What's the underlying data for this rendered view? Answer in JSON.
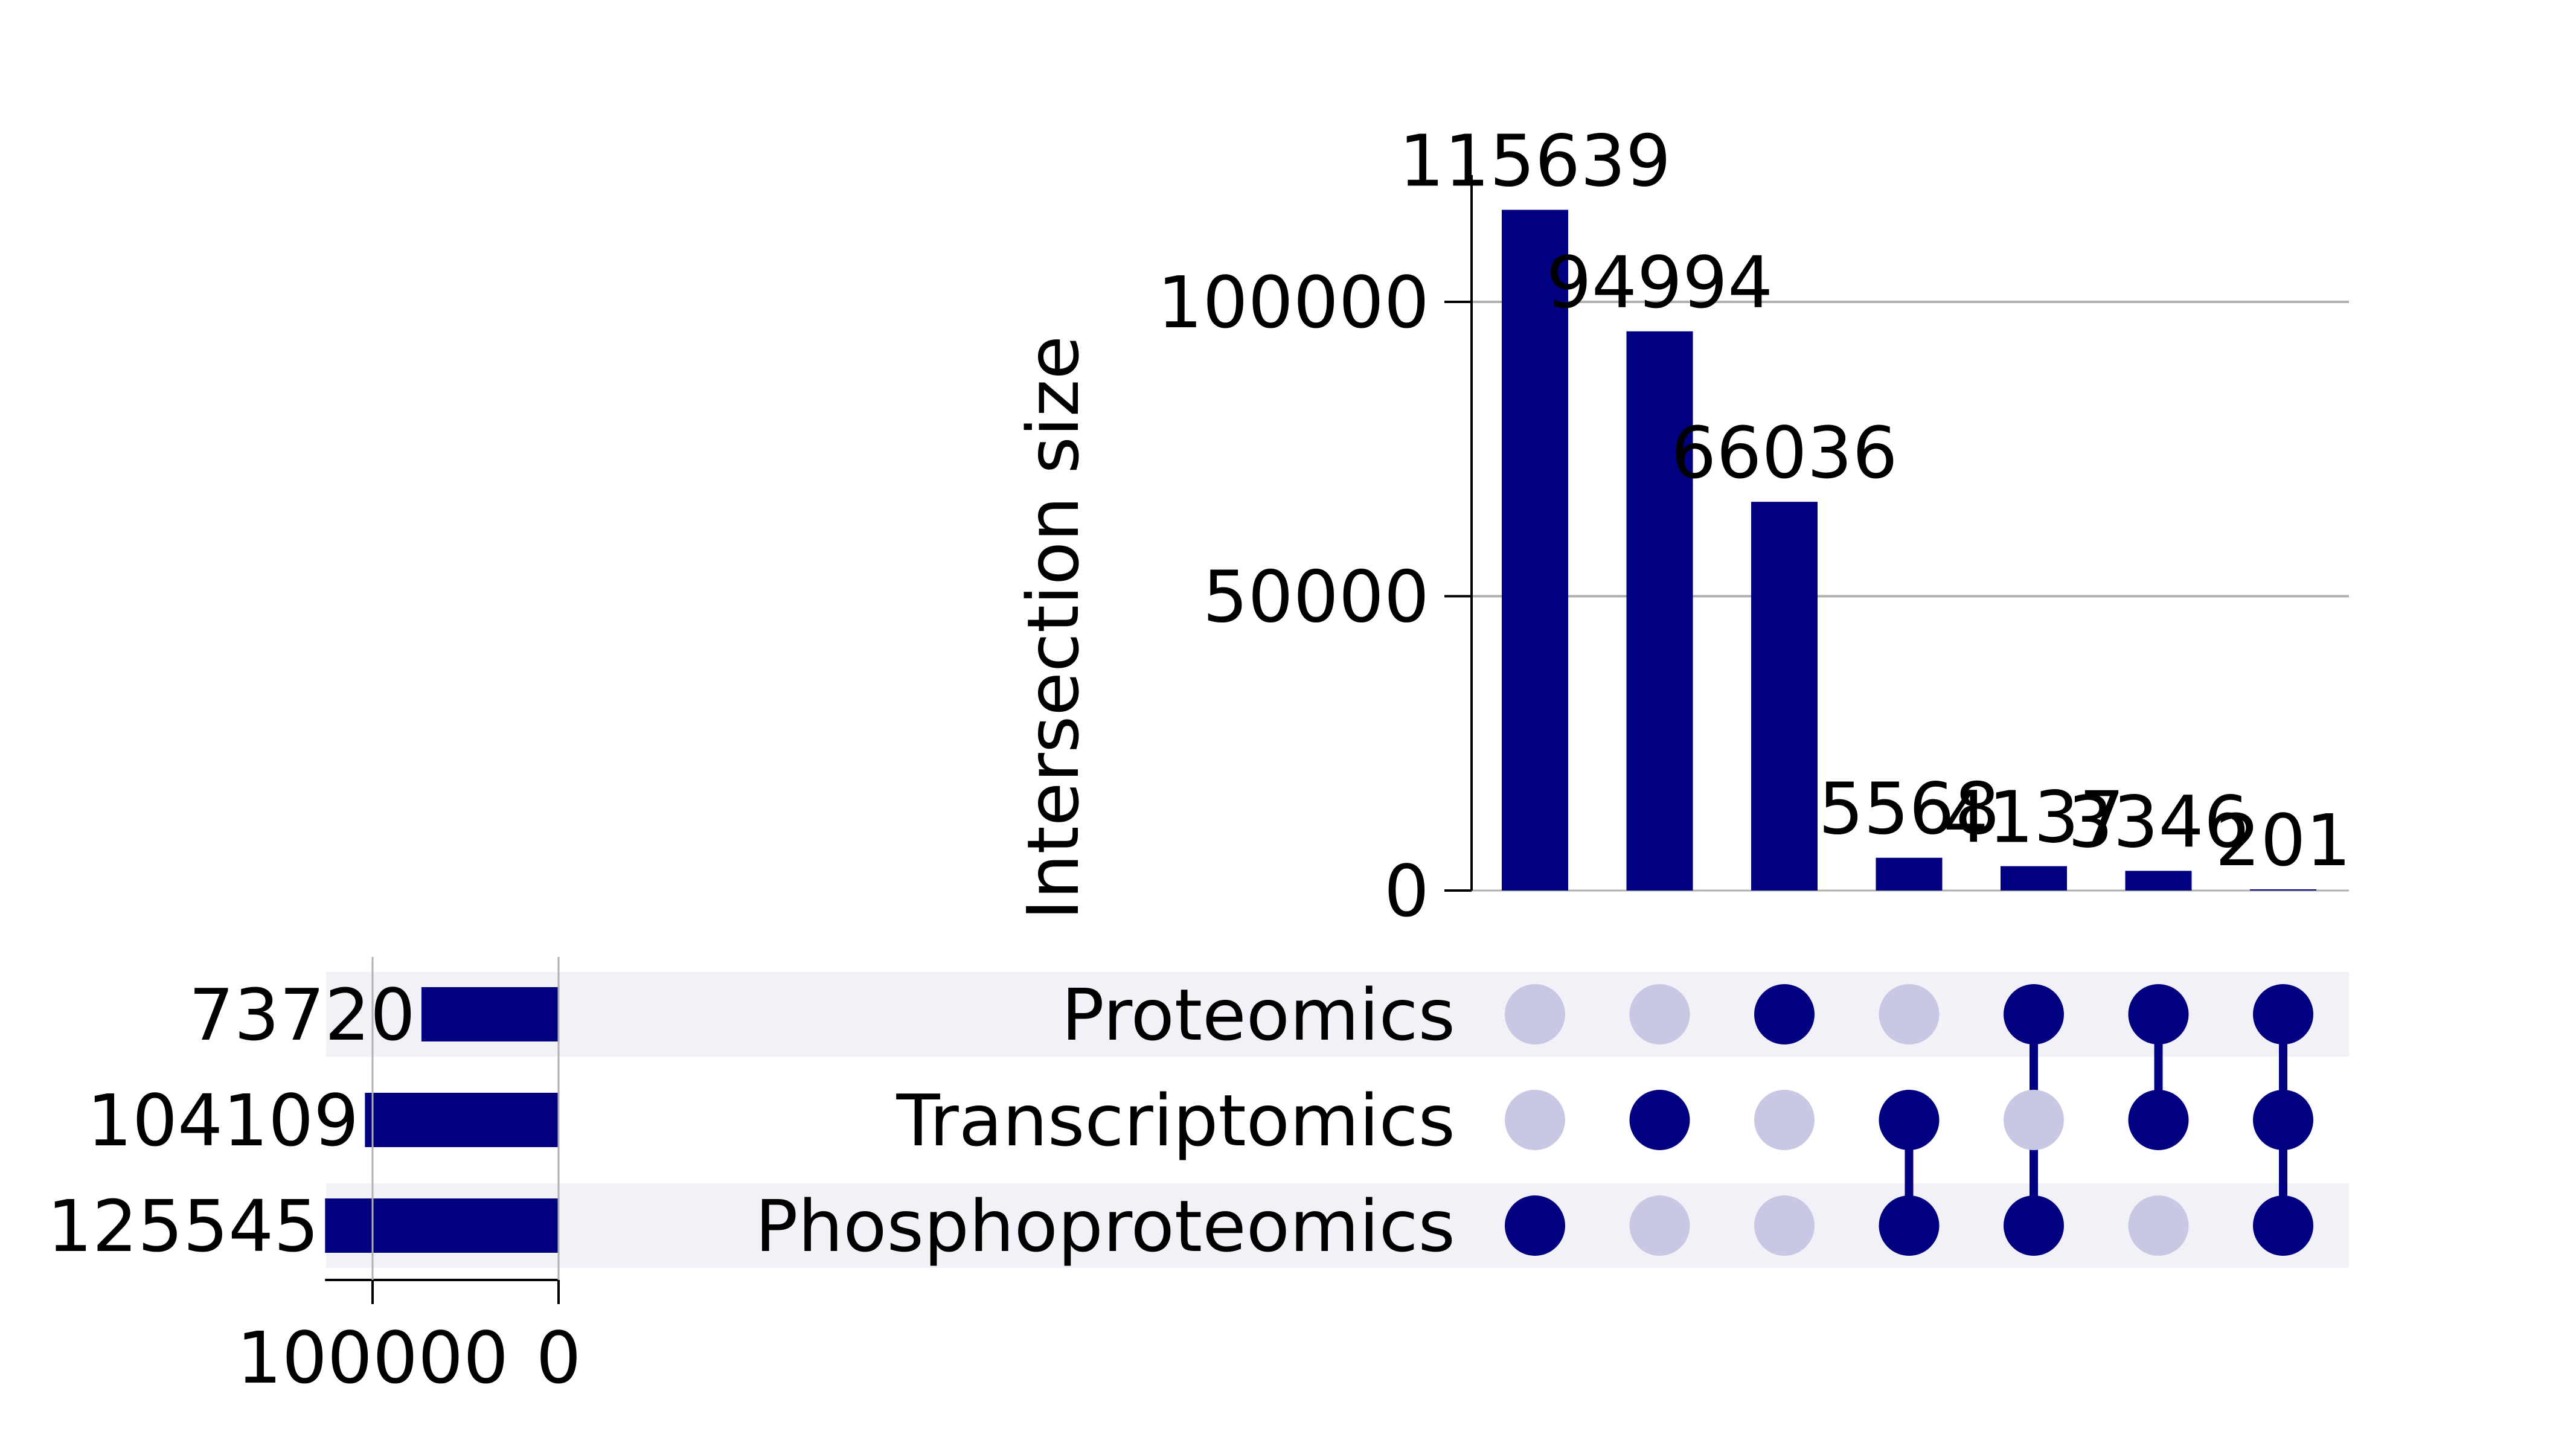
{
  "chart_data": {
    "type": "upset",
    "title": "",
    "ylabel": "Intersection size",
    "ylim": [
      0,
      120000
    ],
    "yticks": [
      0,
      50000,
      100000
    ],
    "grid": true,
    "sets": [
      {
        "name": "Proteomics",
        "size": 73720
      },
      {
        "name": "Transcriptomics",
        "size": 104109
      },
      {
        "name": "Phosphoproteomics",
        "size": 125545
      }
    ],
    "set_size_ticks": [
      "100000",
      "0"
    ],
    "intersections": [
      {
        "members": [
          "Phosphoproteomics"
        ],
        "size": 115639
      },
      {
        "members": [
          "Transcriptomics"
        ],
        "size": 94994
      },
      {
        "members": [
          "Proteomics"
        ],
        "size": 66036
      },
      {
        "members": [
          "Transcriptomics",
          "Phosphoproteomics"
        ],
        "size": 5568
      },
      {
        "members": [
          "Proteomics",
          "Phosphoproteomics"
        ],
        "size": 4137
      },
      {
        "members": [
          "Proteomics",
          "Transcriptomics"
        ],
        "size": 3346
      },
      {
        "members": [
          "Proteomics",
          "Transcriptomics",
          "Phosphoproteomics"
        ],
        "size": 201
      }
    ],
    "colors": {
      "bar": "#000080",
      "dot_on": "#000080",
      "dot_off": "#c8c8e4",
      "stripe": "#f1f1f7",
      "grid": "#b0b0b0"
    }
  }
}
